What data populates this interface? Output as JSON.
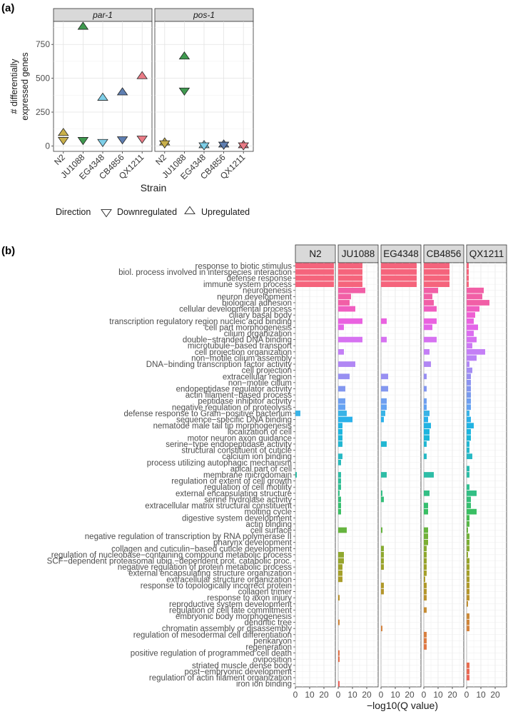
{
  "panel_a_label": "(a)",
  "panel_b_label": "(b)",
  "chart_data": [
    {
      "type": "scatter",
      "facets": [
        "par-1",
        "pos-1"
      ],
      "categories": [
        "N2",
        "JU1088",
        "EG4348",
        "CB4856",
        "QX1211"
      ],
      "xlabel": "Strain",
      "ylabel_lines": [
        "# differentially",
        "expressed genes"
      ],
      "ylim": [
        -40,
        920
      ],
      "yticks": [
        0,
        250,
        500,
        750
      ],
      "legend": {
        "title": "Direction",
        "items": [
          {
            "label": "Downregulated",
            "shape": "triangle-down"
          },
          {
            "label": "Upregulated",
            "shape": "triangle-up"
          }
        ],
        "placement": "bottom"
      },
      "strain_colors": {
        "N2": "#c9b04a",
        "JU1088": "#3f9a4f",
        "EG4348": "#7ecfe8",
        "CB4856": "#5f7fb2",
        "QX1211": "#ea7b86"
      },
      "series": [
        {
          "name": "Upregulated",
          "facet": "par-1",
          "values": [
            95,
            880,
            355,
            395,
            515
          ]
        },
        {
          "name": "Downregulated",
          "facet": "par-1",
          "values": [
            45,
            45,
            30,
            50,
            55
          ]
        },
        {
          "name": "Upregulated",
          "facet": "pos-1",
          "values": [
            25,
            660,
            5,
            10,
            5
          ]
        },
        {
          "name": "Downregulated",
          "facet": "pos-1",
          "values": [
            20,
            410,
            5,
            10,
            5
          ]
        }
      ]
    },
    {
      "type": "bar",
      "orientation": "horizontal",
      "facets": [
        "N2",
        "JU1088",
        "EG4348",
        "CB4856",
        "QX1211"
      ],
      "xlabel": "−log10(Q value)",
      "xlim": [
        0,
        28
      ],
      "xticks": [
        0,
        10,
        20
      ],
      "categories": [
        "response to biotic stimulus",
        "biol. process involved in interspecies interaction",
        "defense response",
        "immune system process",
        "neurogenesis",
        "neuron development",
        "biological adhesion",
        "cellular developmental process",
        "ciliary basal body",
        "transcription regulatory region nucleic acid binding",
        "cell part morphogenesis",
        "cilium organization",
        "double−stranded DNA binding",
        "microtubule−based transport",
        "cell projection organization",
        "non−motile cilium assembly",
        "DNA−binding transcription factor activity",
        "cell projection",
        "extracellular region",
        "non−motile cilium",
        "endopeptidase regulator activity",
        "actin filament−based process",
        "peptidase inhibitor activity",
        "negative regulation of proteolysis",
        "defense response to Gram−positive bacterium",
        "sequence−specific DNA binding",
        "nematode male tail tip morphogenesis",
        "localization of cell",
        "motor neuron axon guidance",
        "serine−type endopeptidase activity",
        "structural constituent of cuticle",
        "calcium ion binding",
        "process utilizing autophagic mechanism",
        "apical part of cell",
        "membrane microdomain",
        "regulation of extent of cell growth",
        "regulation of cell motility",
        "external encapsulating structure",
        "serine hydrolase activity",
        "extracellular matrix structural constituent",
        "molting cycle",
        "digestive system development",
        "actin binding",
        "cell surface",
        "negative regulation of transcription by RNA polymerase II",
        "pharynx development",
        "collagen and cuticulin−based cuticle development",
        "regulation of nucleobase−containing compound metabolic process",
        "SCF−dependent proteasomal ubiq.−dependent prot. catabolic proc.",
        "negative regulation of protein metabolic process",
        "external encapsulating structure organization",
        "extracellular structure organization",
        "response to topologically incorrect protein",
        "collagen trimer",
        "response to axon injury",
        "reproductive system development",
        "regulation of cell fate commitment",
        "embryonic body morphogenesis",
        "dendritic tree",
        "chromatin assembly or disassembly",
        "regulation of mesodermal cell differentiation",
        "perikaryon",
        "regeneration",
        "positive regulation of programmed cell death",
        "oviposition",
        "striated muscle dense body",
        "post−embryonic development",
        "regulation of actin filament organization",
        "iron ion binding"
      ],
      "series": [
        {
          "name": "N2",
          "values": [
            27,
            27,
            27,
            27,
            0,
            0,
            0,
            0,
            0,
            0,
            0,
            0,
            0,
            0,
            0,
            0,
            0,
            0,
            0,
            0,
            0,
            0,
            0,
            0,
            3.5,
            0,
            0,
            0,
            0,
            0,
            0,
            0,
            0,
            0,
            1,
            0,
            0,
            0,
            0,
            0,
            0,
            0,
            0,
            0,
            0,
            0,
            0,
            0,
            0,
            0,
            0,
            0,
            0,
            0,
            0,
            0,
            0,
            0,
            0,
            0,
            0,
            0,
            0,
            0,
            0,
            0,
            0,
            0,
            0
          ]
        },
        {
          "name": "JU1088",
          "values": [
            17,
            17,
            17,
            17,
            19,
            9,
            8,
            12,
            0,
            17,
            4,
            0,
            17,
            0,
            4,
            0,
            12,
            0,
            8,
            0,
            5,
            0,
            5,
            5,
            6,
            10,
            3,
            3,
            3,
            3,
            0,
            3,
            2,
            0,
            2,
            2,
            2,
            1,
            2,
            2,
            2,
            0,
            0,
            6,
            0,
            0,
            0,
            4,
            4,
            3,
            3,
            3,
            0,
            0,
            1,
            0,
            0,
            0,
            1,
            0,
            0,
            0,
            0,
            1,
            1,
            0,
            0,
            0,
            1
          ]
        },
        {
          "name": "EG4348",
          "values": [
            25,
            25,
            25,
            25,
            0,
            0,
            0,
            0,
            0,
            4,
            0,
            0,
            4,
            0,
            0,
            0,
            0,
            0,
            5,
            0,
            5,
            0,
            4,
            4,
            3,
            2,
            0,
            0,
            0,
            4,
            0,
            0,
            0,
            0,
            4,
            0,
            0,
            1,
            2,
            0,
            0,
            0,
            0,
            1,
            0,
            0,
            2,
            2,
            2,
            2,
            0,
            0,
            2,
            2,
            0,
            0,
            0,
            0,
            0,
            1,
            0,
            0,
            0,
            0,
            0,
            0,
            0,
            0,
            0
          ]
        },
        {
          "name": "CB4856",
          "values": [
            18,
            18,
            18,
            18,
            10,
            6,
            7,
            9,
            0,
            9,
            6,
            0,
            9,
            0,
            4,
            0,
            5,
            0,
            2,
            0,
            2,
            0,
            2,
            2,
            4,
            3,
            5,
            4,
            4,
            2,
            0,
            2,
            0,
            0,
            7,
            0,
            0,
            4,
            0,
            3,
            3,
            0,
            0,
            3,
            3,
            3,
            2,
            2,
            2,
            2,
            2,
            1,
            2,
            2,
            2,
            0,
            2,
            0,
            0,
            0,
            2,
            2,
            2,
            0,
            0,
            0,
            0,
            0,
            0
          ]
        },
        {
          "name": "QX1211",
          "values": [
            1.5,
            1.5,
            1.5,
            1.5,
            12,
            11,
            16,
            9,
            6,
            5,
            8,
            5,
            7,
            4,
            13,
            7,
            2,
            4,
            3,
            3,
            3,
            3,
            3,
            3,
            2,
            3,
            5,
            3,
            3,
            2,
            2,
            4,
            0,
            2,
            2,
            0,
            2,
            7,
            3,
            3,
            7,
            2,
            2,
            1,
            2,
            2,
            2,
            1,
            2,
            2,
            2,
            2,
            2,
            2,
            2,
            1,
            0,
            2,
            2,
            2,
            0,
            0,
            0,
            0,
            0,
            2,
            2,
            2,
            0
          ]
        }
      ],
      "bar_colors": [
        "#f5647c",
        "#f5647c",
        "#f5647c",
        "#f5647c",
        "#f15fa6",
        "#f15fa6",
        "#f15fa6",
        "#f05ec0",
        "#ef5fd2",
        "#ea62e0",
        "#e366e8",
        "#dc6df0",
        "#d672f1",
        "#cd79f5",
        "#c47ff6",
        "#bb83f6",
        "#b187f4",
        "#a48df3",
        "#988ff2",
        "#8c94f1",
        "#8397ef",
        "#7a9aec",
        "#6f9ff0",
        "#64a3f2",
        "#39b3e6",
        "#2ab1ea",
        "#23b3e2",
        "#1cb5df",
        "#1eb6d8",
        "#22b7d2",
        "#25b8cc",
        "#27b9c5",
        "#28baba",
        "#2abbaf",
        "#2ebda6",
        "#2fbe99",
        "#31bf8f",
        "#33bf85",
        "#35bf7a",
        "#37bf70",
        "#3abf64",
        "#47bc54",
        "#58b848",
        "#66b43f",
        "#71b13a",
        "#7caf35",
        "#86ab31",
        "#8fa82f",
        "#97a52d",
        "#9ea22b",
        "#a5a02a",
        "#aa9d2a",
        "#b09a2b",
        "#b5972d",
        "#bb942f",
        "#c19032",
        "#c68d35",
        "#cb8a38",
        "#d0863b",
        "#d5833e",
        "#d98040",
        "#dd7c43",
        "#e07846",
        "#e37449",
        "#e5704d",
        "#e86d50",
        "#ea6a54",
        "#ec6758",
        "#ee645c"
      ]
    }
  ]
}
